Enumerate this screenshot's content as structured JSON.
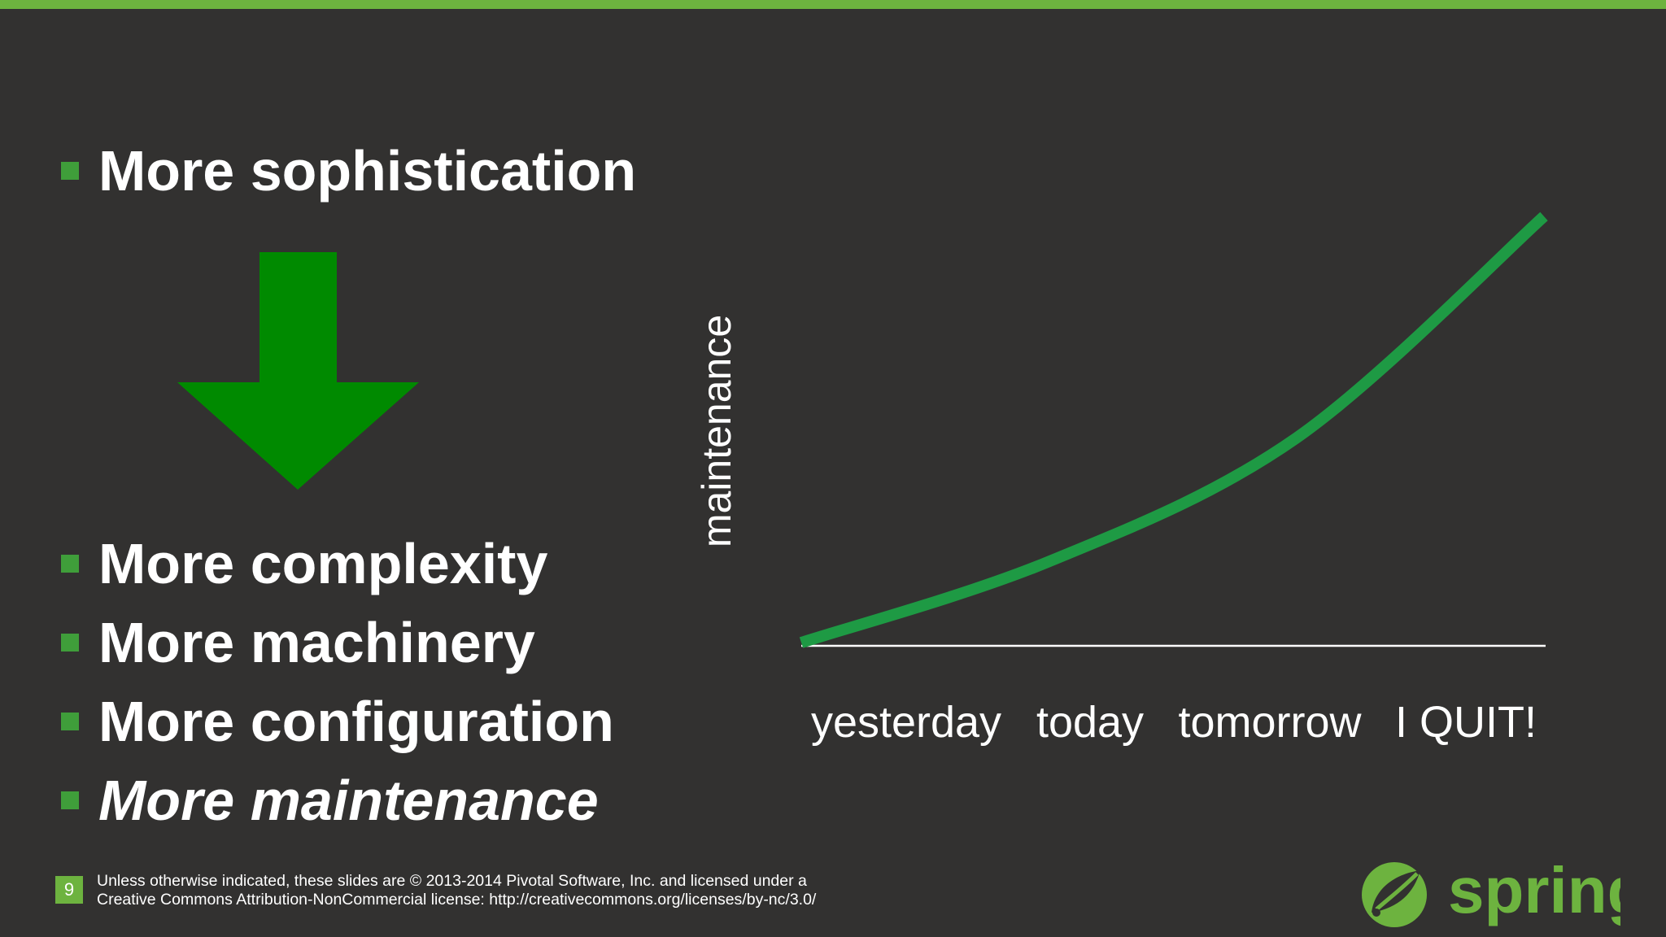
{
  "slide": {
    "bullets_top": [
      "More sophistication"
    ],
    "bullets_bottom": [
      "More complexity",
      "More machinery",
      "More configuration",
      "More maintenance"
    ]
  },
  "chart_data": {
    "type": "line",
    "ylabel": "maintenance",
    "xlabel": "",
    "categories": [
      "yesterday",
      "today",
      "tomorrow",
      "I QUIT!"
    ],
    "series": [
      {
        "values": [
          0,
          0.19,
          0.48,
          1.0
        ]
      }
    ],
    "ylim": [
      0,
      1
    ],
    "grid": false,
    "color": "#1e9a44"
  },
  "footer": {
    "page_number": "9",
    "license_line1": "Unless otherwise indicated, these slides are © 2013-2014 Pivotal Software, Inc. and licensed under a",
    "license_line2": "Creative Commons Attribution-NonCommercial license: http://creativecommons.org/licenses/by-nc/3.0/",
    "logo_text": "spring"
  },
  "colors": {
    "background": "#323130",
    "accent": "#6db33f",
    "arrow": "#008a00",
    "curve": "#1e9a44"
  },
  "icons": {
    "bullet": "square-bullet-icon",
    "arrow": "down-arrow-icon",
    "logo": "spring-leaf-icon"
  }
}
